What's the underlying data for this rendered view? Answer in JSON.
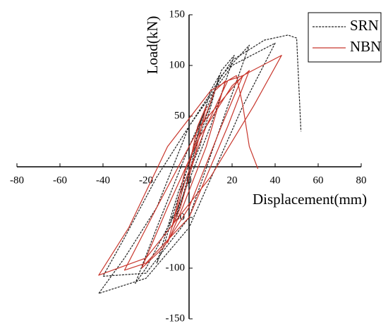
{
  "chart_data": {
    "type": "line",
    "xlabel": "Displacement(mm)",
    "ylabel": "Load(kN)",
    "xlim": [
      -80,
      80
    ],
    "ylim": [
      -150,
      150
    ],
    "xticks": [
      -80,
      -60,
      -40,
      -20,
      0,
      20,
      40,
      60,
      80
    ],
    "yticks": [
      -150,
      -100,
      -50,
      50,
      100,
      150
    ],
    "legend": "upper right",
    "series": [
      {
        "name": "SRN",
        "color": "#222222",
        "dash": true,
        "x": [
          0,
          3,
          6,
          2,
          -3,
          -6,
          -2,
          3,
          10,
          14,
          5,
          -5,
          -12,
          -15,
          -5,
          5,
          15,
          21,
          10,
          -5,
          -20,
          -25,
          -15,
          0,
          15,
          28,
          18,
          0,
          -20,
          -40,
          -30,
          -15,
          0,
          20,
          40,
          25,
          0,
          -20,
          -42,
          -30,
          -15,
          0,
          20,
          35,
          46,
          50,
          52
        ],
        "values": [
          0,
          30,
          50,
          10,
          -30,
          -50,
          -10,
          25,
          75,
          90,
          20,
          -30,
          -80,
          -95,
          -25,
          30,
          95,
          110,
          40,
          -40,
          -100,
          -115,
          -60,
          20,
          90,
          120,
          60,
          -50,
          -105,
          -108,
          -70,
          -10,
          40,
          100,
          122,
          60,
          -60,
          -110,
          -125,
          -90,
          -40,
          40,
          105,
          125,
          130,
          127,
          35
        ]
      },
      {
        "name": "NBN",
        "color": "#c8372d",
        "dash": false,
        "x": [
          0,
          4,
          8,
          2,
          -4,
          -8,
          -2,
          5,
          12,
          17,
          8,
          -3,
          -10,
          -2,
          8,
          18,
          25,
          15,
          0,
          -12,
          -22,
          -10,
          5,
          20,
          28,
          18,
          0,
          -20,
          -30,
          -15,
          5,
          25,
          43,
          30,
          10,
          -20,
          -42,
          -28,
          -10,
          10,
          22,
          25,
          28,
          32
        ],
        "values": [
          0,
          40,
          60,
          5,
          -40,
          -60,
          -5,
          35,
          75,
          85,
          20,
          -40,
          -75,
          -15,
          40,
          85,
          90,
          40,
          -40,
          -80,
          -100,
          -40,
          30,
          80,
          95,
          40,
          -50,
          -95,
          -102,
          -40,
          40,
          90,
          110,
          60,
          -10,
          -90,
          -107,
          -60,
          20,
          75,
          90,
          60,
          20,
          -2
        ]
      }
    ]
  }
}
